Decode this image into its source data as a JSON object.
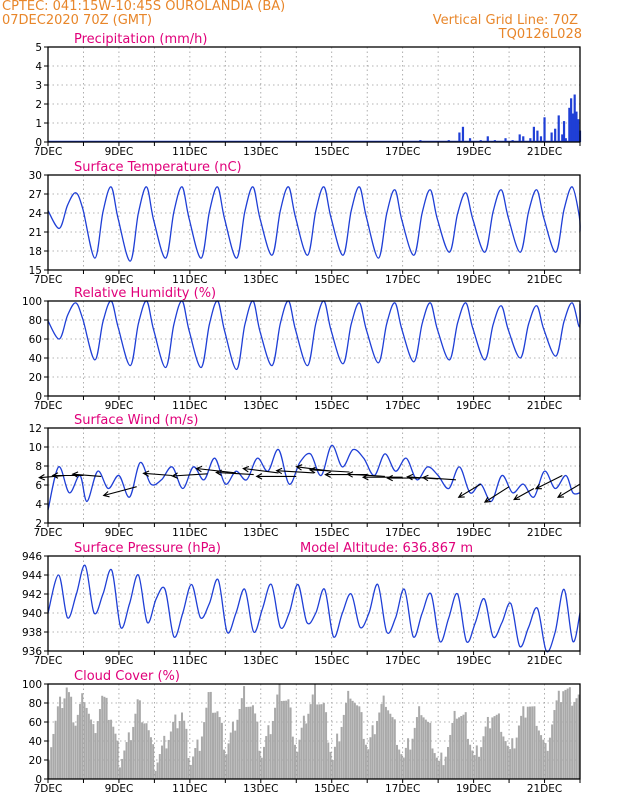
{
  "header": {
    "station_line": "CPTEC:  041:15W-10:45S  OUROLANDIA (BA)",
    "date_line": "07DEC2020 70Z (GMT)",
    "grid_line_label": "Vertical Grid Line: 70Z",
    "product_code": "TQ0126L028"
  },
  "colors": {
    "header": "#e8862a",
    "title": "#e0007a",
    "series": "#1f3fd6",
    "cloud_bars": "#a9a9a9"
  },
  "chart_data": [
    {
      "id": "precip",
      "type": "bar",
      "title": "Precipitation (mm/h)",
      "x_ticks": [
        "7DEC",
        "9DEC",
        "11DEC",
        "13DEC",
        "15DEC",
        "17DEC",
        "19DEC",
        "21DEC"
      ],
      "x_range_days": [
        7,
        22
      ],
      "ylim": [
        0,
        5
      ],
      "y_ticks": [
        "0",
        "1",
        "2",
        "3",
        "4",
        "5"
      ],
      "grid": true,
      "series_color": "#1f3fd6",
      "x": [
        17.5,
        17.7,
        18.3,
        18.6,
        18.7,
        18.9,
        19.2,
        19.4,
        19.6,
        19.9,
        20.1,
        20.3,
        20.4,
        20.6,
        20.7,
        20.8,
        20.9,
        21.0,
        21.2,
        21.3,
        21.4,
        21.5,
        21.55,
        21.6,
        21.7,
        21.75,
        21.8,
        21.85,
        21.9,
        21.95,
        22.0
      ],
      "values": [
        0.1,
        0.05,
        0.1,
        0.5,
        0.8,
        0.2,
        0.1,
        0.3,
        0.1,
        0.2,
        0.1,
        0.4,
        0.3,
        0.2,
        0.8,
        0.6,
        0.3,
        1.3,
        0.5,
        0.7,
        1.4,
        0.4,
        1.1,
        0.2,
        1.8,
        2.3,
        1.5,
        2.5,
        1.6,
        1.2,
        0.6
      ]
    },
    {
      "id": "temp",
      "type": "line",
      "title": "Surface Temperature (nC)",
      "x_ticks": [
        "7DEC",
        "9DEC",
        "11DEC",
        "13DEC",
        "15DEC",
        "17DEC",
        "19DEC",
        "21DEC"
      ],
      "x_range_days": [
        7,
        22
      ],
      "ylim": [
        15,
        31
      ],
      "y_ticks": [
        "15",
        "18",
        "21",
        "24",
        "27",
        "30"
      ],
      "grid": true,
      "series_color": "#1f3fd6",
      "min": [
        22.0,
        17.0,
        16.5,
        17.0,
        17.0,
        17.0,
        17.5,
        17.5,
        17.5,
        17.0,
        17.5,
        18.0,
        18.0,
        18.0,
        18.0,
        20.0
      ],
      "max": [
        28.0,
        29.0,
        29.0,
        29.0,
        29.0,
        29.0,
        29.0,
        29.0,
        29.0,
        28.5,
        28.5,
        28.0,
        28.5,
        28.5,
        29.0,
        26.0
      ],
      "end": 21.5
    },
    {
      "id": "rh",
      "type": "line",
      "title": "Relative Humidity (%)",
      "x_ticks": [
        "7DEC",
        "9DEC",
        "11DEC",
        "13DEC",
        "15DEC",
        "17DEC",
        "19DEC",
        "21DEC"
      ],
      "x_range_days": [
        7,
        22
      ],
      "ylim": [
        0,
        100
      ],
      "y_ticks": [
        "0",
        "20",
        "40",
        "60",
        "80",
        "100"
      ],
      "grid": true,
      "series_color": "#1f3fd6",
      "min": [
        60,
        38,
        32,
        30,
        30,
        28,
        32,
        32,
        34,
        35,
        36,
        38,
        38,
        40,
        42,
        60
      ],
      "max": [
        98,
        100,
        100,
        100,
        100,
        100,
        100,
        100,
        98,
        98,
        98,
        98,
        95,
        95,
        98,
        100
      ],
      "end": 97
    },
    {
      "id": "wind",
      "type": "line",
      "title": "Surface Wind (m/s)",
      "x_ticks": [
        "7DEC",
        "9DEC",
        "11DEC",
        "13DEC",
        "15DEC",
        "17DEC",
        "19DEC",
        "21DEC"
      ],
      "x_range_days": [
        7,
        22
      ],
      "ylim": [
        2,
        13
      ],
      "y_ticks": [
        "2",
        "4",
        "6",
        "8",
        "10",
        "12"
      ],
      "grid": true,
      "series_color": "#1f3fd6",
      "x": [
        7.0,
        7.3,
        7.6,
        7.9,
        8.1,
        8.4,
        8.7,
        9.0,
        9.3,
        9.6,
        9.9,
        10.2,
        10.5,
        10.8,
        11.1,
        11.4,
        11.7,
        12.0,
        12.3,
        12.6,
        12.9,
        13.2,
        13.5,
        13.8,
        14.1,
        14.4,
        14.7,
        15.0,
        15.3,
        15.6,
        15.9,
        16.2,
        16.5,
        16.8,
        17.1,
        17.4,
        17.7,
        18.0,
        18.3,
        18.6,
        18.9,
        19.2,
        19.5,
        19.8,
        20.1,
        20.4,
        20.7,
        21.0,
        21.3,
        21.6,
        21.8,
        22.0
      ],
      "values": [
        3.5,
        8.5,
        5.5,
        7.5,
        4.5,
        8.0,
        6.0,
        7.5,
        5.0,
        9.0,
        6.5,
        7.0,
        8.5,
        6.0,
        8.5,
        7.0,
        9.5,
        6.5,
        8.0,
        7.0,
        9.5,
        8.0,
        10.5,
        6.5,
        9.0,
        10.0,
        7.5,
        11.0,
        8.5,
        10.5,
        9.5,
        7.5,
        10.0,
        8.0,
        9.5,
        7.0,
        8.5,
        7.5,
        6.0,
        8.5,
        5.5,
        6.5,
        4.5,
        7.5,
        5.5,
        6.5,
        5.0,
        8.0,
        6.0,
        7.5,
        5.5,
        5.5
      ],
      "arrows_x": [
        7.5,
        8.0,
        8.5,
        9.5,
        10.5,
        11.5,
        12.3,
        12.8,
        13.5,
        14.0,
        14.5,
        15.0,
        15.5,
        16.0,
        16.5,
        17.0,
        17.5,
        18.0,
        18.5,
        19.2,
        20.0,
        20.7,
        21.5,
        22.0
      ],
      "arrows_y": [
        7.5,
        7.5,
        7.4,
        6.2,
        7.5,
        7.7,
        7.8,
        7.6,
        7.8,
        7.4,
        7.8,
        8.0,
        7.9,
        7.6,
        7.4,
        7.3,
        7.2,
        7.1,
        7.0,
        6.5,
        6.2,
        6.0,
        7.5,
        6.5
      ],
      "arrows_u": [
        -1.2,
        -1.4,
        -1.3,
        -1.5,
        -1.3,
        -1.6,
        -1.8,
        -1.7,
        -1.6,
        -1.8,
        -1.7,
        -1.6,
        -1.8,
        -1.9,
        -1.7,
        -1.8,
        -1.5,
        -1.4,
        -1.5,
        -1.0,
        -1.1,
        -0.9,
        -1.2,
        -1.0
      ],
      "arrows_v": [
        -0.1,
        0.0,
        0.1,
        -0.4,
        0.1,
        -0.1,
        0.2,
        0.1,
        0.2,
        0.0,
        0.1,
        0.2,
        0.1,
        0.0,
        0.1,
        0.0,
        0.0,
        0.1,
        0.1,
        -0.6,
        -0.7,
        -0.5,
        -0.6,
        -0.6
      ]
    },
    {
      "id": "pressure",
      "type": "line",
      "title": "Surface Pressure (hPa)",
      "annotation": "Model Altitude: 636.867  m",
      "x_ticks": [
        "7DEC",
        "9DEC",
        "11DEC",
        "13DEC",
        "15DEC",
        "17DEC",
        "19DEC",
        "21DEC"
      ],
      "x_range_days": [
        7,
        22
      ],
      "ylim": [
        936,
        946
      ],
      "y_ticks": [
        "936",
        "938",
        "940",
        "942",
        "944",
        "946"
      ],
      "grid": true,
      "series_color": "#1f3fd6",
      "x": [
        7.0,
        7.3,
        7.55,
        7.8,
        8.05,
        8.3,
        8.55,
        8.8,
        9.05,
        9.3,
        9.55,
        9.8,
        10.05,
        10.3,
        10.55,
        10.8,
        11.05,
        11.3,
        11.55,
        11.8,
        12.05,
        12.3,
        12.55,
        12.8,
        13.05,
        13.3,
        13.55,
        13.8,
        14.05,
        14.3,
        14.55,
        14.8,
        15.05,
        15.3,
        15.55,
        15.8,
        16.05,
        16.3,
        16.55,
        16.8,
        17.05,
        17.3,
        17.55,
        17.8,
        18.05,
        18.3,
        18.55,
        18.8,
        19.05,
        19.3,
        19.55,
        19.8,
        20.05,
        20.3,
        20.55,
        20.8,
        21.05,
        21.3,
        21.55,
        21.8,
        22.0
      ],
      "values": [
        940.0,
        944.0,
        939.5,
        942.0,
        945.0,
        940.0,
        942.0,
        944.5,
        938.5,
        941.0,
        944.0,
        939.0,
        941.5,
        942.5,
        937.5,
        940.0,
        943.0,
        939.5,
        941.0,
        943.5,
        938.0,
        940.0,
        942.5,
        938.0,
        940.5,
        943.0,
        938.5,
        940.0,
        943.0,
        939.0,
        940.0,
        942.5,
        937.5,
        940.0,
        942.0,
        938.5,
        940.0,
        943.0,
        938.0,
        939.5,
        942.5,
        937.5,
        940.0,
        942.0,
        937.0,
        939.5,
        942.0,
        937.0,
        939.0,
        941.5,
        937.5,
        939.0,
        941.0,
        936.5,
        938.5,
        940.5,
        936.0,
        938.0,
        942.5,
        937.0,
        940.0
      ]
    },
    {
      "id": "cloud",
      "type": "bar",
      "title": "Cloud Cover (%)",
      "x_ticks": [
        "7DEC",
        "9DEC",
        "11DEC",
        "13DEC",
        "15DEC",
        "17DEC",
        "19DEC",
        "21DEC"
      ],
      "x_range_days": [
        7,
        22
      ],
      "ylim": [
        0,
        100
      ],
      "y_ticks": [
        "0",
        "20",
        "40",
        "60",
        "80",
        "100"
      ],
      "grid": true,
      "series_color": "#a9a9a9",
      "x": [
        7.0,
        7.25,
        7.5,
        7.75,
        8.0,
        8.25,
        8.5,
        8.75,
        9.0,
        9.25,
        9.5,
        9.75,
        10.0,
        10.25,
        10.5,
        10.75,
        11.0,
        11.25,
        11.5,
        11.75,
        12.0,
        12.25,
        12.5,
        12.75,
        13.0,
        13.25,
        13.5,
        13.75,
        14.0,
        14.25,
        14.5,
        14.75,
        15.0,
        15.25,
        15.5,
        15.75,
        16.0,
        16.25,
        16.5,
        16.75,
        17.0,
        17.25,
        17.5,
        17.75,
        18.0,
        18.25,
        18.5,
        18.75,
        19.0,
        19.25,
        19.5,
        19.75,
        20.0,
        20.25,
        20.5,
        20.75,
        21.0,
        21.25,
        21.5,
        21.75
      ],
      "values": [
        30,
        70,
        95,
        60,
        90,
        50,
        85,
        65,
        20,
        40,
        80,
        60,
        15,
        35,
        55,
        70,
        20,
        40,
        85,
        70,
        30,
        60,
        90,
        75,
        25,
        55,
        95,
        80,
        30,
        65,
        90,
        75,
        20,
        60,
        95,
        70,
        30,
        65,
        85,
        55,
        20,
        45,
        75,
        50,
        15,
        35,
        70,
        60,
        20,
        45,
        70,
        60,
        25,
        55,
        80,
        65,
        30,
        70,
        95,
        85
      ]
    }
  ]
}
